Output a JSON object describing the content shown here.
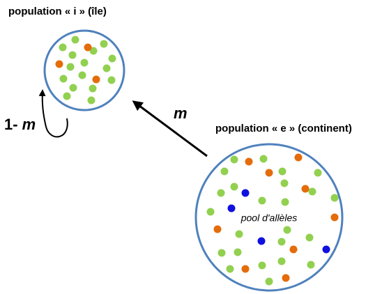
{
  "island": {
    "label": "population « i » (île)"
  },
  "self_arrow": {
    "prefix": "1-",
    "variable": "m"
  },
  "migration_arrow": {
    "label": "m"
  },
  "continent": {
    "label": "population « e » (continent)",
    "pool_label": "pool d'allèles"
  }
}
